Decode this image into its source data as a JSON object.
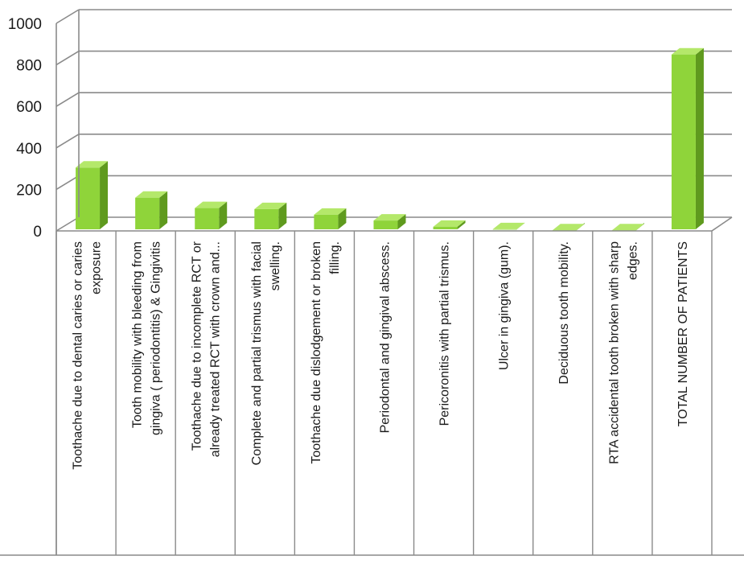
{
  "chart_data": {
    "type": "bar",
    "style": "3d-column",
    "categories": [
      [
        "Toothache due to dental caries or caries",
        "exposure"
      ],
      [
        "Tooth mobility with bleeding from",
        "gingiva ( periodontitis) & Gingivitis"
      ],
      [
        "Toothache due to incomplete RCT or",
        "already treated RCT with crown and..."
      ],
      [
        "Complete and partial trismus with facial",
        "swelling."
      ],
      [
        "Toothache due dislodgement or broken",
        "filling."
      ],
      [
        "Periodontal and gingival abscess."
      ],
      [
        "Pericoronitis with partial trismus."
      ],
      [
        "Ulcer in gingiva (gum)."
      ],
      [
        "Deciduous tooth mobility."
      ],
      [
        "RTA accidental tooth broken with sharp",
        "edges."
      ],
      [
        "TOTAL NUMBER OF PATIENTS"
      ]
    ],
    "values": [
      305,
      160,
      110,
      105,
      78,
      50,
      20,
      8,
      3,
      3,
      850
    ],
    "ylim": [
      0,
      1000
    ],
    "yticks": [
      "0",
      "200",
      "400",
      "600",
      "800",
      "1000"
    ],
    "grid": true,
    "legend": "none",
    "colors": {
      "bar_front": "#8fd43a",
      "bar_side": "#5f9a1e",
      "bar_top": "#b4e86a",
      "grid": "#8a8a8a",
      "wall": "#8a8a8a"
    }
  }
}
